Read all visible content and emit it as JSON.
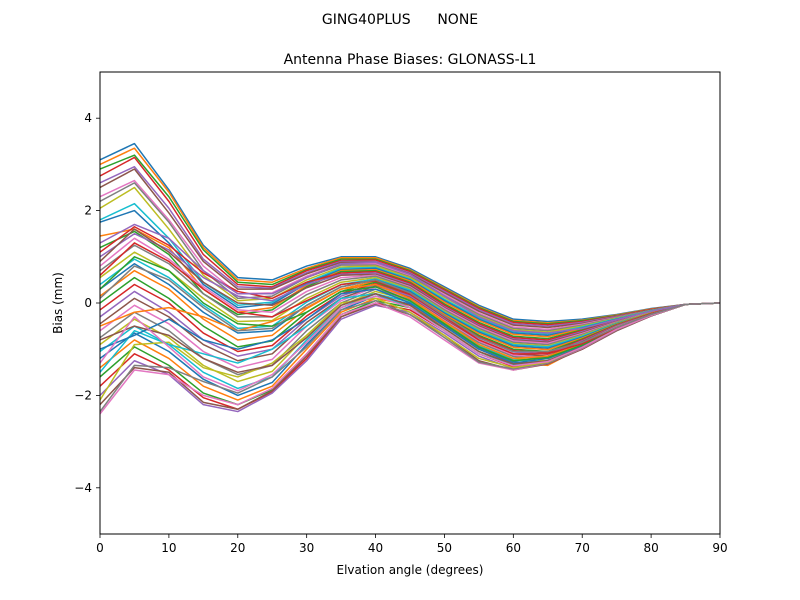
{
  "figure": {
    "suptitle": "GING40PLUS      NONE"
  },
  "chart_data": {
    "type": "line",
    "title": "Antenna Phase Biases: GLONASS-L1",
    "xlabel": "Elvation angle (degrees)",
    "ylabel": "Bias (mm)",
    "xlim": [
      0,
      90
    ],
    "ylim": [
      -5,
      5
    ],
    "xticks": [
      0,
      10,
      20,
      30,
      40,
      50,
      60,
      70,
      80,
      90
    ],
    "xtick_labels": [
      "0",
      "10",
      "20",
      "30",
      "40",
      "50",
      "60",
      "70",
      "80",
      "90"
    ],
    "yticks": [
      -4,
      -2,
      0,
      2,
      4
    ],
    "ytick_labels": [
      "−4",
      "−2",
      "0",
      "2",
      "4"
    ],
    "grid": false,
    "legend": "none",
    "palette": [
      "#1f77b4",
      "#ff7f0e",
      "#2ca02c",
      "#d62728",
      "#9467bd",
      "#8c564b",
      "#e377c2",
      "#7f7f7f",
      "#bcbd22",
      "#17becf"
    ],
    "x": [
      0,
      5,
      10,
      15,
      20,
      25,
      30,
      35,
      40,
      45,
      50,
      55,
      60,
      65,
      70,
      75,
      80,
      85,
      90
    ],
    "series": [
      {
        "values": [
          3.1,
          3.45,
          2.45,
          1.25,
          0.55,
          0.5,
          0.8,
          1.0,
          1.0,
          0.75,
          0.35,
          -0.05,
          -0.35,
          -0.4,
          -0.35,
          -0.25,
          -0.12,
          -0.03,
          0
        ]
      },
      {
        "values": [
          3.0,
          3.35,
          2.4,
          1.2,
          0.5,
          0.45,
          0.75,
          0.98,
          0.98,
          0.72,
          0.32,
          -0.08,
          -0.38,
          -0.43,
          -0.37,
          -0.26,
          -0.13,
          -0.03,
          0
        ]
      },
      {
        "values": [
          2.9,
          3.2,
          2.3,
          1.15,
          0.45,
          0.4,
          0.72,
          0.95,
          0.95,
          0.7,
          0.3,
          -0.1,
          -0.4,
          -0.45,
          -0.38,
          -0.27,
          -0.14,
          -0.03,
          0
        ]
      },
      {
        "values": [
          2.75,
          3.15,
          2.2,
          1.05,
          0.4,
          0.35,
          0.7,
          0.92,
          0.93,
          0.68,
          0.28,
          -0.12,
          -0.42,
          -0.47,
          -0.4,
          -0.28,
          -0.14,
          -0.03,
          0
        ]
      },
      {
        "values": [
          2.6,
          2.95,
          2.05,
          0.95,
          0.35,
          0.32,
          0.66,
          0.9,
          0.9,
          0.65,
          0.25,
          -0.15,
          -0.45,
          -0.5,
          -0.42,
          -0.29,
          -0.15,
          -0.03,
          0
        ]
      },
      {
        "values": [
          2.5,
          2.9,
          1.95,
          0.9,
          0.3,
          0.3,
          0.63,
          0.88,
          0.88,
          0.63,
          0.22,
          -0.18,
          -0.48,
          -0.53,
          -0.44,
          -0.3,
          -0.15,
          -0.03,
          0
        ]
      },
      {
        "values": [
          2.3,
          2.65,
          1.8,
          0.8,
          0.2,
          0.22,
          0.58,
          0.85,
          0.85,
          0.6,
          0.18,
          -0.22,
          -0.52,
          -0.57,
          -0.46,
          -0.31,
          -0.16,
          -0.03,
          0
        ]
      },
      {
        "values": [
          2.2,
          2.6,
          1.75,
          0.7,
          0.1,
          0.15,
          0.55,
          0.82,
          0.82,
          0.57,
          0.15,
          -0.25,
          -0.55,
          -0.6,
          -0.48,
          -0.32,
          -0.16,
          -0.03,
          0
        ]
      },
      {
        "values": [
          2.05,
          2.5,
          1.6,
          0.6,
          0.05,
          0.1,
          0.5,
          0.78,
          0.8,
          0.55,
          0.12,
          -0.28,
          -0.58,
          -0.63,
          -0.5,
          -0.33,
          -0.17,
          -0.03,
          0
        ]
      },
      {
        "values": [
          1.8,
          2.15,
          1.4,
          0.45,
          -0.05,
          0.02,
          0.45,
          0.75,
          0.77,
          0.52,
          0.08,
          -0.32,
          -0.62,
          -0.67,
          -0.52,
          -0.34,
          -0.17,
          -0.03,
          0
        ]
      },
      {
        "values": [
          1.75,
          2.0,
          1.3,
          0.4,
          -0.1,
          -0.02,
          0.42,
          0.72,
          0.75,
          0.5,
          0.05,
          -0.35,
          -0.65,
          -0.7,
          -0.54,
          -0.35,
          -0.18,
          -0.03,
          0
        ]
      },
      {
        "values": [
          1.45,
          1.6,
          1.2,
          0.3,
          -0.2,
          -0.1,
          0.38,
          0.7,
          0.72,
          0.48,
          0.02,
          -0.38,
          -0.68,
          -0.73,
          -0.56,
          -0.36,
          -0.18,
          -0.03,
          0
        ]
      },
      {
        "values": [
          1.2,
          1.55,
          1.05,
          0.2,
          -0.25,
          -0.15,
          0.35,
          0.68,
          0.7,
          0.45,
          -0.02,
          -0.42,
          -0.72,
          -0.77,
          -0.58,
          -0.37,
          -0.19,
          -0.03,
          0
        ]
      },
      {
        "values": [
          1.1,
          1.65,
          1.25,
          0.65,
          0.25,
          0.1,
          0.45,
          0.65,
          0.68,
          0.43,
          -0.05,
          -0.45,
          -0.75,
          -0.8,
          -0.6,
          -0.38,
          -0.19,
          -0.03,
          0
        ]
      },
      {
        "values": [
          1.0,
          1.5,
          1.15,
          0.55,
          0.15,
          0.05,
          0.4,
          0.62,
          0.65,
          0.4,
          -0.08,
          -0.48,
          -0.78,
          -0.83,
          -0.62,
          -0.39,
          -0.2,
          -0.03,
          0
        ]
      },
      {
        "values": [
          0.9,
          1.6,
          1.1,
          0.45,
          0.0,
          -0.05,
          0.33,
          0.6,
          0.62,
          0.38,
          -0.1,
          -0.5,
          -0.8,
          -0.85,
          -0.64,
          -0.4,
          -0.2,
          -0.03,
          0
        ]
      },
      {
        "values": [
          0.8,
          1.4,
          0.95,
          0.35,
          -0.15,
          -0.2,
          0.25,
          0.55,
          0.6,
          0.35,
          -0.12,
          -0.52,
          -0.82,
          -0.87,
          -0.66,
          -0.41,
          -0.2,
          -0.03,
          0
        ]
      },
      {
        "values": [
          0.7,
          1.25,
          0.85,
          0.2,
          -0.3,
          -0.3,
          0.18,
          0.5,
          0.58,
          0.33,
          -0.15,
          -0.55,
          -0.85,
          -0.9,
          -0.68,
          -0.42,
          -0.21,
          -0.03,
          0
        ]
      },
      {
        "values": [
          0.55,
          1.1,
          0.7,
          0.1,
          -0.4,
          -0.38,
          0.1,
          0.45,
          0.55,
          0.3,
          -0.18,
          -0.58,
          -0.88,
          -0.93,
          -0.7,
          -0.43,
          -0.21,
          -0.03,
          0
        ]
      },
      {
        "values": [
          0.4,
          0.95,
          0.55,
          -0.05,
          -0.55,
          -0.5,
          0.02,
          0.4,
          0.52,
          0.28,
          -0.2,
          -0.6,
          -0.9,
          -0.95,
          -0.72,
          -0.44,
          -0.22,
          -0.03,
          0
        ]
      },
      {
        "values": [
          0.3,
          0.85,
          0.4,
          -0.2,
          -0.65,
          -0.6,
          -0.05,
          0.35,
          0.5,
          0.25,
          -0.22,
          -0.63,
          -0.93,
          -0.98,
          -0.74,
          -0.45,
          -0.22,
          -0.03,
          0
        ]
      },
      {
        "values": [
          0.15,
          0.7,
          0.3,
          -0.35,
          -0.8,
          -0.7,
          -0.12,
          0.3,
          0.47,
          0.22,
          -0.25,
          -0.66,
          -0.96,
          -1.01,
          -0.76,
          -0.46,
          -0.22,
          -0.03,
          0
        ]
      },
      {
        "values": [
          0.0,
          0.55,
          0.1,
          -0.5,
          -0.95,
          -0.82,
          -0.2,
          0.25,
          0.45,
          0.2,
          -0.28,
          -0.7,
          -1.0,
          -1.05,
          -0.78,
          -0.47,
          -0.23,
          -0.03,
          0
        ]
      },
      {
        "values": [
          -0.15,
          0.4,
          0.0,
          -0.65,
          -1.05,
          -0.92,
          -0.28,
          0.2,
          0.42,
          0.17,
          -0.3,
          -0.73,
          -1.03,
          -1.08,
          -0.8,
          -0.48,
          -0.23,
          -0.03,
          0
        ]
      },
      {
        "values": [
          -0.3,
          0.25,
          -0.2,
          -0.8,
          -1.15,
          -1.0,
          -0.35,
          0.15,
          0.4,
          0.15,
          -0.33,
          -0.76,
          -1.06,
          -1.11,
          -0.82,
          -0.49,
          -0.24,
          -0.03,
          0
        ]
      },
      {
        "values": [
          -0.45,
          0.1,
          -0.3,
          -0.9,
          -1.25,
          -1.1,
          -0.42,
          0.1,
          0.37,
          0.12,
          -0.36,
          -0.8,
          -1.1,
          -1.15,
          -0.84,
          -0.5,
          -0.24,
          -0.03,
          0
        ]
      },
      {
        "values": [
          -0.6,
          -0.05,
          -0.45,
          -1.05,
          -1.4,
          -1.22,
          -0.5,
          0.05,
          0.35,
          0.1,
          -0.38,
          -0.83,
          -1.13,
          -1.18,
          -0.86,
          -0.51,
          -0.25,
          -0.03,
          0
        ]
      },
      {
        "values": [
          -0.75,
          -0.2,
          -0.6,
          -1.2,
          -1.55,
          -1.35,
          -0.6,
          0.0,
          0.3,
          0.07,
          -0.4,
          -0.86,
          -1.16,
          -1.21,
          -0.88,
          -0.52,
          -0.25,
          -0.03,
          0
        ]
      },
      {
        "values": [
          -0.9,
          -0.35,
          -0.75,
          -1.35,
          -1.7,
          -1.48,
          -0.7,
          -0.05,
          0.25,
          0.05,
          -0.42,
          -0.9,
          -1.2,
          -1.25,
          -0.9,
          -0.53,
          -0.26,
          -0.03,
          0
        ]
      },
      {
        "values": [
          -1.05,
          -0.5,
          -0.9,
          -1.5,
          -1.85,
          -1.6,
          -0.8,
          -0.1,
          0.2,
          0.02,
          -0.45,
          -0.93,
          -1.23,
          -1.28,
          -0.92,
          -0.54,
          -0.26,
          -0.03,
          0
        ]
      },
      {
        "values": [
          -1.2,
          -0.65,
          -1.05,
          -1.65,
          -2.0,
          -1.72,
          -0.9,
          -0.15,
          0.15,
          -0.02,
          -0.48,
          -0.97,
          -1.27,
          -1.32,
          -0.94,
          -0.55,
          -0.27,
          -0.03,
          0
        ]
      },
      {
        "values": [
          -1.4,
          -0.8,
          -1.2,
          -1.8,
          -2.1,
          -1.8,
          -1.0,
          -0.2,
          0.1,
          -0.05,
          -0.5,
          -1.0,
          -1.3,
          -1.35,
          -0.96,
          -0.56,
          -0.27,
          -0.03,
          0
        ]
      },
      {
        "values": [
          -1.6,
          -0.95,
          -1.35,
          -1.95,
          -2.2,
          -1.88,
          -1.1,
          -0.25,
          0.05,
          -0.1,
          -0.55,
          -1.05,
          -1.35,
          -1.3,
          -0.98,
          -0.57,
          -0.28,
          -0.03,
          0
        ]
      },
      {
        "values": [
          -1.8,
          -1.1,
          -1.45,
          -2.05,
          -2.3,
          -1.92,
          -1.2,
          -0.3,
          0.0,
          -0.15,
          -0.6,
          -1.1,
          -1.38,
          -1.28,
          -1.0,
          -0.58,
          -0.28,
          -0.03,
          0
        ]
      },
      {
        "values": [
          -2.0,
          -1.25,
          -1.55,
          -2.2,
          -2.35,
          -1.95,
          -1.25,
          -0.35,
          -0.05,
          -0.2,
          -0.65,
          -1.15,
          -1.42,
          -1.3,
          -1.0,
          -0.6,
          -0.28,
          -0.03,
          0
        ]
      },
      {
        "values": [
          -2.2,
          -1.4,
          -1.5,
          -2.15,
          -2.3,
          -1.9,
          -1.15,
          -0.3,
          -0.02,
          -0.25,
          -0.7,
          -1.25,
          -1.45,
          -1.32,
          -1.0,
          -0.6,
          -0.28,
          -0.03,
          0
        ]
      },
      {
        "values": [
          -2.4,
          -1.45,
          -1.55,
          -2.0,
          -2.2,
          -1.85,
          -1.1,
          -0.25,
          0.0,
          -0.3,
          -0.8,
          -1.3,
          -1.45,
          -1.3,
          -0.98,
          -0.58,
          -0.27,
          -0.03,
          0
        ]
      },
      {
        "values": [
          -2.35,
          -1.35,
          -1.4,
          -1.7,
          -1.95,
          -1.6,
          -0.95,
          -0.15,
          0.05,
          -0.25,
          -0.75,
          -1.28,
          -1.43,
          -1.3,
          -0.97,
          -0.58,
          -0.27,
          -0.03,
          0
        ]
      },
      {
        "values": [
          -2.1,
          -0.9,
          -0.85,
          -1.4,
          -1.6,
          -1.3,
          -0.7,
          0.0,
          0.1,
          -0.2,
          -0.7,
          -1.2,
          -1.4,
          -1.28,
          -0.95,
          -0.57,
          -0.27,
          -0.03,
          0
        ]
      },
      {
        "values": [
          -1.5,
          -0.6,
          -0.9,
          -1.1,
          -1.3,
          -1.0,
          -0.5,
          0.1,
          0.2,
          -0.1,
          -0.6,
          -1.1,
          -1.35,
          -1.25,
          -0.93,
          -0.56,
          -0.27,
          -0.03,
          0
        ]
      },
      {
        "values": [
          -1.0,
          -0.7,
          -0.35,
          -0.8,
          -1.0,
          -0.8,
          -0.35,
          0.2,
          0.3,
          0.0,
          -0.5,
          -1.0,
          -1.3,
          -1.2,
          -0.92,
          -0.56,
          -0.26,
          -0.03,
          0
        ]
      },
      {
        "values": [
          -0.5,
          -0.2,
          -0.1,
          -0.3,
          -0.6,
          -0.4,
          -0.1,
          0.3,
          0.4,
          0.1,
          -0.4,
          -0.9,
          -1.2,
          -1.15,
          -0.9,
          -0.55,
          -0.26,
          -0.03,
          0
        ]
      },
      {
        "values": [
          0.3,
          1.0,
          0.7,
          0.0,
          -0.45,
          -0.5,
          -0.2,
          0.25,
          0.35,
          0.05,
          -0.45,
          -0.95,
          -1.25,
          -1.18,
          -0.91,
          -0.55,
          -0.26,
          -0.03,
          0
        ]
      },
      {
        "values": [
          0.6,
          1.3,
          0.9,
          0.3,
          -0.2,
          -0.3,
          0.05,
          0.4,
          0.48,
          0.2,
          -0.3,
          -0.8,
          -1.1,
          -1.1,
          -0.88,
          -0.54,
          -0.26,
          -0.03,
          0
        ]
      },
      {
        "values": [
          1.3,
          1.7,
          1.4,
          0.7,
          0.2,
          0.2,
          0.55,
          0.85,
          0.88,
          0.62,
          0.15,
          -0.3,
          -0.6,
          -0.65,
          -0.55,
          -0.36,
          -0.18,
          -0.03,
          0
        ]
      },
      {
        "values": [
          -0.8,
          -0.5,
          -0.7,
          -1.2,
          -1.5,
          -1.35,
          -0.75,
          -0.05,
          0.2,
          -0.05,
          -0.55,
          -1.05,
          -1.32,
          -1.25,
          -0.95,
          -0.57,
          -0.27,
          -0.03,
          0
        ]
      },
      {
        "values": [
          -1.3,
          -0.3,
          -0.95,
          -1.6,
          -1.9,
          -1.55,
          -0.85,
          -0.1,
          0.15,
          -0.1,
          -0.6,
          -1.1,
          -1.36,
          -1.27,
          -0.96,
          -0.57,
          -0.27,
          -0.03,
          0
        ]
      },
      {
        "values": [
          0.1,
          0.8,
          0.5,
          -0.1,
          -0.6,
          -0.55,
          -0.05,
          0.35,
          0.5,
          0.22,
          -0.28,
          -0.75,
          -1.05,
          -1.05,
          -0.85,
          -0.53,
          -0.25,
          -0.03,
          0
        ]
      }
    ]
  }
}
